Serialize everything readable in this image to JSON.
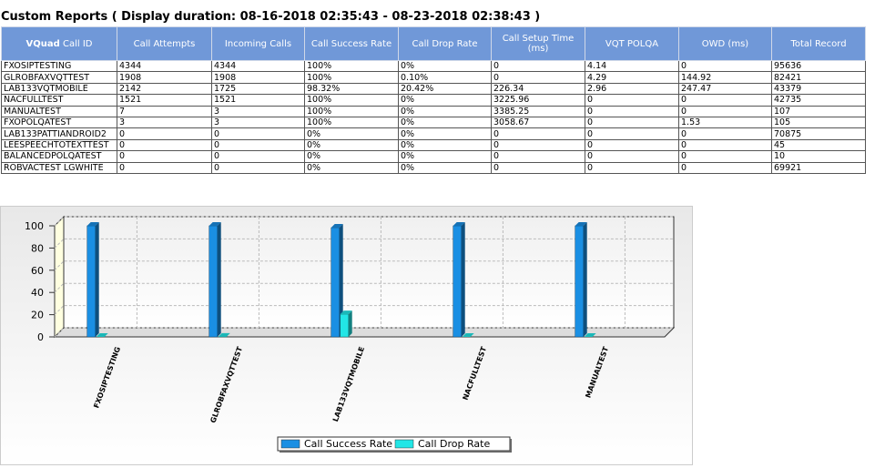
{
  "header": {
    "title": "Custom Reports ( Display duration: 08-16-2018 02:35:43 - 08-23-2018 02:38:43 )"
  },
  "table": {
    "id_header": {
      "strong": "VQuad",
      "text": "Call ID"
    },
    "headers": [
      "Call Attempts",
      "Incoming Calls",
      "Call Success Rate",
      "Call Drop Rate",
      "Call Setup Time (ms)",
      "VQT POLQA",
      "OWD (ms)",
      "Total Record"
    ],
    "rows": [
      [
        "FXOSIPTESTING",
        "4344",
        "4344",
        "100%",
        "0%",
        "0",
        "4.14",
        "0",
        "95636"
      ],
      [
        "GLROBFAXVQTTEST",
        "1908",
        "1908",
        "100%",
        "0.10%",
        "0",
        "4.29",
        "144.92",
        "82421"
      ],
      [
        "LAB133VQTMOBILE",
        "2142",
        "1725",
        "98.32%",
        "20.42%",
        "226.34",
        "2.96",
        "247.47",
        "43379"
      ],
      [
        "NACFULLTEST",
        "1521",
        "1521",
        "100%",
        "0%",
        "3225.96",
        "0",
        "0",
        "42735"
      ],
      [
        "MANUALTEST",
        "7",
        "3",
        "100%",
        "0%",
        "3385.25",
        "0",
        "0",
        "107"
      ],
      [
        "FXOPOLQATEST",
        "3",
        "3",
        "100%",
        "0%",
        "3058.67",
        "0",
        "1.53",
        "105"
      ],
      [
        "LAB133PATTIANDROID2",
        "0",
        "0",
        "0%",
        "0%",
        "0",
        "0",
        "0",
        "70875"
      ],
      [
        "LEESPEECHTOTEXTTEST",
        "0",
        "0",
        "0%",
        "0%",
        "0",
        "0",
        "0",
        "45"
      ],
      [
        "BALANCEDPOLQATEST",
        "0",
        "0",
        "0%",
        "0%",
        "0",
        "0",
        "0",
        "10"
      ],
      [
        "ROBVACTEST LGWHITE",
        "0",
        "0",
        "0%",
        "0%",
        "0",
        "0",
        "0",
        "69921"
      ]
    ]
  },
  "chart_data": {
    "type": "bar",
    "categories": [
      "FXOSIPTESTING",
      "GLROBFAXVQTTEST",
      "LAB133VQTMOBILE",
      "NACFULLTEST",
      "MANUALTEST"
    ],
    "series": [
      {
        "name": "Call Success Rate",
        "color": "#1a8fe3",
        "values": [
          100,
          100,
          98.32,
          100,
          100
        ]
      },
      {
        "name": "Call Drop Rate",
        "color": "#22e6e6",
        "values": [
          0,
          0.1,
          20.42,
          0,
          0
        ]
      }
    ],
    "ylim": [
      0,
      100
    ],
    "yticks": [
      0,
      20,
      40,
      60,
      80,
      100
    ],
    "grid": true,
    "legend": "bottom"
  }
}
